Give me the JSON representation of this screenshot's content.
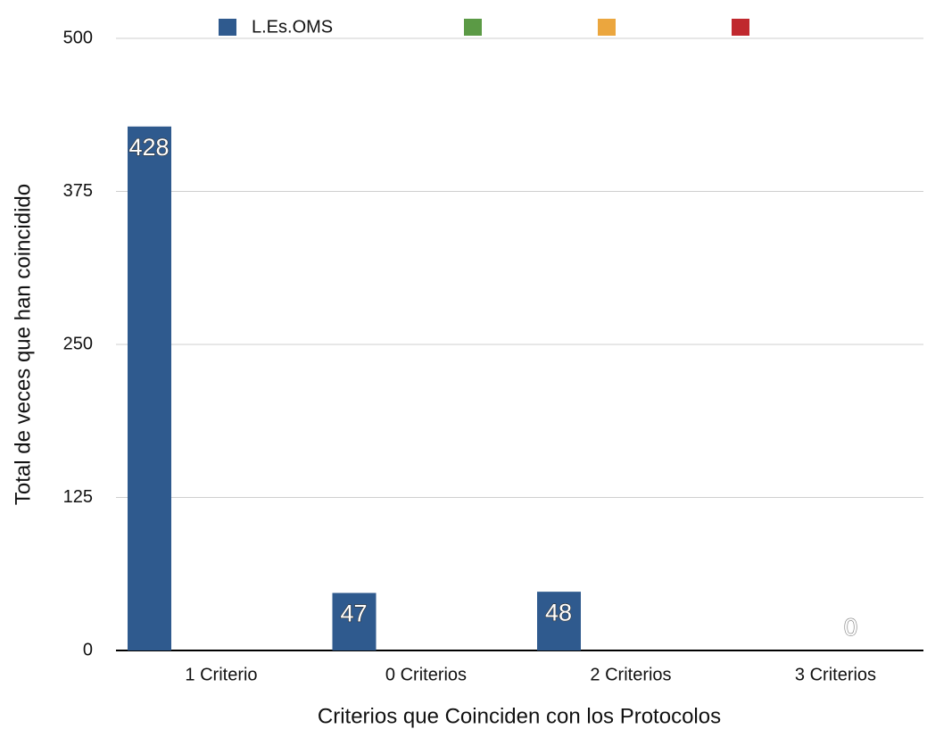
{
  "chart_data": {
    "type": "bar",
    "x_label": "Criterios que Coinciden con los Protocolos",
    "y_label": "Total de veces que han coincidido",
    "categories": [
      "1 Criterio",
      "0 Criterios",
      "2 Criterios",
      "3 Criterios"
    ],
    "series": [
      {
        "name": "L.Es.OMS",
        "color": "#2f5a8e",
        "values": [
          428,
          47,
          48,
          0
        ]
      },
      {
        "color": "#5b9a45",
        "values": [
          null,
          null,
          null,
          null
        ]
      },
      {
        "color": "#eba63e",
        "values": [
          null,
          null,
          null,
          null
        ]
      },
      {
        "color": "#c0282e",
        "values": [
          null,
          null,
          null,
          null
        ]
      }
    ],
    "ylim": [
      0,
      500
    ],
    "yticks": [
      0,
      125,
      250,
      375,
      500
    ],
    "grid": true
  }
}
